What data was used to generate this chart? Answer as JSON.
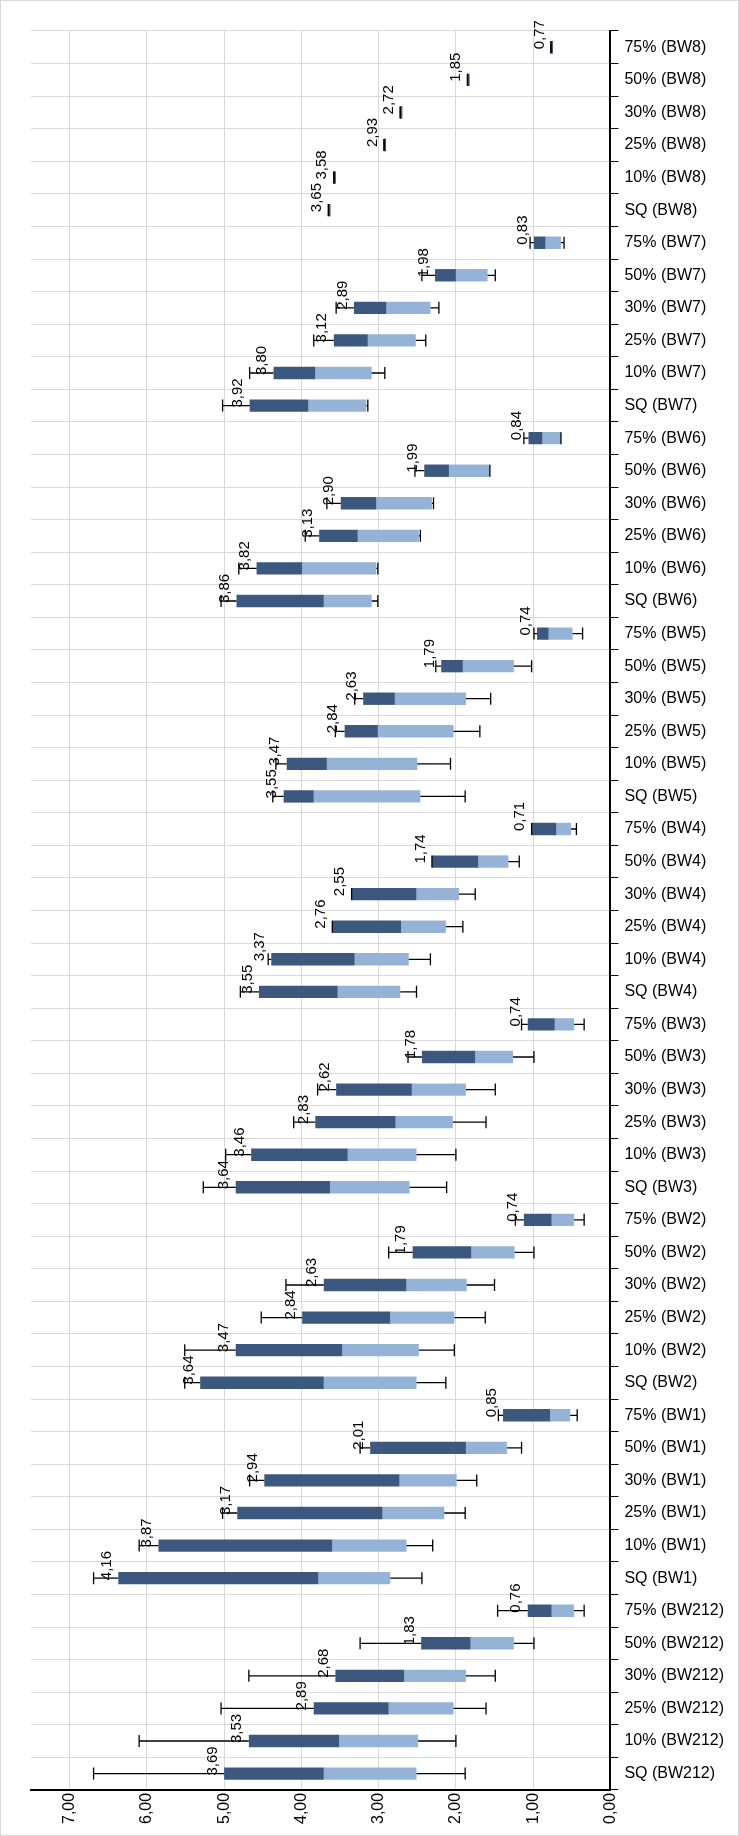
{
  "chart_data": {
    "type": "box",
    "orientation": "horizontal",
    "color": "#95b3d7",
    "grid": true,
    "legend": false,
    "categories": [
      "75% (BW8)",
      "50% (BW8)",
      "30% (BW8)",
      "25% (BW8)",
      "10% (BW8)",
      "SQ (BW8)",
      "75% (BW7)",
      "50% (BW7)",
      "30% (BW7)",
      "25% (BW7)",
      "10% (BW7)",
      "SQ (BW7)",
      "75% (BW6)",
      "50% (BW6)",
      "30% (BW6)",
      "25% (BW6)",
      "10% (BW6)",
      "SQ (BW6)",
      "75% (BW5)",
      "50% (BW5)",
      "30% (BW5)",
      "25% (BW5)",
      "10% (BW5)",
      "SQ (BW5)",
      "75% (BW4)",
      "50% (BW4)",
      "30% (BW4)",
      "25% (BW4)",
      "10% (BW4)",
      "SQ (BW4)",
      "75% (BW3)",
      "50% (BW3)",
      "30% (BW3)",
      "25% (BW3)",
      "10% (BW3)",
      "SQ (BW3)",
      "75% (BW2)",
      "50% (BW2)",
      "30% (BW2)",
      "25% (BW2)",
      "10% (BW2)",
      "SQ (BW2)",
      "75% (BW1)",
      "50% (BW1)",
      "30% (BW1)",
      "25% (BW1)",
      "10% (BW1)",
      "SQ (BW1)",
      "75% (BW212)",
      "50% (BW212)",
      "30% (BW212)",
      "25% (BW212)",
      "10% (BW212)",
      "SQ (BW212)"
    ],
    "boxes": [
      {
        "low": 0.77,
        "q1": 0.77,
        "median": 0.77,
        "q3": 0.77,
        "high": 0.77
      },
      {
        "low": 1.85,
        "q1": 1.85,
        "median": 1.85,
        "q3": 1.85,
        "high": 1.85
      },
      {
        "low": 2.72,
        "q1": 2.72,
        "median": 2.72,
        "q3": 2.72,
        "high": 2.72
      },
      {
        "low": 2.93,
        "q1": 2.93,
        "median": 2.93,
        "q3": 2.93,
        "high": 2.93
      },
      {
        "low": 3.58,
        "q1": 3.58,
        "median": 3.58,
        "q3": 3.58,
        "high": 3.58
      },
      {
        "low": 3.65,
        "q1": 3.65,
        "median": 3.65,
        "q3": 3.65,
        "high": 3.65
      },
      {
        "low": 0.6,
        "q1": 0.64,
        "median": 0.84,
        "q3": 0.99,
        "high": 1.04
      },
      {
        "low": 1.49,
        "q1": 1.59,
        "median": 2.0,
        "q3": 2.27,
        "high": 2.44
      },
      {
        "low": 2.22,
        "q1": 2.33,
        "median": 2.9,
        "q3": 3.32,
        "high": 3.55
      },
      {
        "low": 2.39,
        "q1": 2.52,
        "median": 3.14,
        "q3": 3.58,
        "high": 3.84
      },
      {
        "low": 2.92,
        "q1": 3.09,
        "median": 3.82,
        "q3": 4.36,
        "high": 4.67
      },
      {
        "low": 3.14,
        "q1": 3.16,
        "median": 3.91,
        "q3": 4.67,
        "high": 5.02
      },
      {
        "low": 0.64,
        "q1": 0.64,
        "median": 0.88,
        "q3": 1.06,
        "high": 1.12
      },
      {
        "low": 1.56,
        "q1": 1.56,
        "median": 2.09,
        "q3": 2.41,
        "high": 2.53
      },
      {
        "low": 2.29,
        "q1": 2.31,
        "median": 3.03,
        "q3": 3.49,
        "high": 3.67
      },
      {
        "low": 2.46,
        "q1": 2.48,
        "median": 3.27,
        "q3": 3.77,
        "high": 3.95
      },
      {
        "low": 3.01,
        "q1": 3.03,
        "median": 3.99,
        "q3": 4.58,
        "high": 4.81
      },
      {
        "low": 3.01,
        "q1": 3.09,
        "median": 3.71,
        "q3": 4.84,
        "high": 5.04
      },
      {
        "low": 0.36,
        "q1": 0.49,
        "median": 0.8,
        "q3": 0.95,
        "high": 0.99
      },
      {
        "low": 1.02,
        "q1": 1.25,
        "median": 1.91,
        "q3": 2.19,
        "high": 2.26
      },
      {
        "low": 1.55,
        "q1": 1.87,
        "median": 2.79,
        "q3": 3.2,
        "high": 3.31
      },
      {
        "low": 1.69,
        "q1": 2.03,
        "median": 3.01,
        "q3": 3.44,
        "high": 3.56
      },
      {
        "low": 2.07,
        "q1": 2.5,
        "median": 3.67,
        "q3": 4.19,
        "high": 4.33
      },
      {
        "low": 1.88,
        "q1": 2.46,
        "median": 3.84,
        "q3": 4.23,
        "high": 4.37
      },
      {
        "low": 0.44,
        "q1": 0.51,
        "median": 0.7,
        "q3": 1.02,
        "high": 1.02
      },
      {
        "low": 1.18,
        "q1": 1.32,
        "median": 1.71,
        "q3": 2.31,
        "high": 2.31
      },
      {
        "low": 1.75,
        "q1": 1.96,
        "median": 2.51,
        "q3": 3.35,
        "high": 3.35
      },
      {
        "low": 1.91,
        "q1": 2.13,
        "median": 2.71,
        "q3": 3.6,
        "high": 3.6
      },
      {
        "low": 2.33,
        "q1": 2.61,
        "median": 3.31,
        "q3": 4.39,
        "high": 4.43
      },
      {
        "low": 2.51,
        "q1": 2.72,
        "median": 3.53,
        "q3": 4.55,
        "high": 4.79
      },
      {
        "low": 0.34,
        "q1": 0.47,
        "median": 0.72,
        "q3": 1.07,
        "high": 1.15
      },
      {
        "low": 0.99,
        "q1": 1.26,
        "median": 1.75,
        "q3": 2.44,
        "high": 2.62
      },
      {
        "low": 1.49,
        "q1": 1.87,
        "median": 2.57,
        "q3": 3.55,
        "high": 3.79
      },
      {
        "low": 1.61,
        "q1": 2.04,
        "median": 2.78,
        "q3": 3.82,
        "high": 4.1
      },
      {
        "low": 2.0,
        "q1": 2.51,
        "median": 3.4,
        "q3": 4.65,
        "high": 4.98
      },
      {
        "low": 2.12,
        "q1": 2.6,
        "median": 3.63,
        "q3": 4.85,
        "high": 5.27
      },
      {
        "low": 0.34,
        "q1": 0.47,
        "median": 0.76,
        "q3": 1.12,
        "high": 1.23
      },
      {
        "low": 0.99,
        "q1": 1.24,
        "median": 1.8,
        "q3": 2.56,
        "high": 2.87
      },
      {
        "low": 1.5,
        "q1": 1.86,
        "median": 2.64,
        "q3": 3.71,
        "high": 4.2
      },
      {
        "low": 1.62,
        "q1": 2.02,
        "median": 2.85,
        "q3": 3.99,
        "high": 4.52
      },
      {
        "low": 2.02,
        "q1": 2.48,
        "median": 3.47,
        "q3": 4.85,
        "high": 5.51
      },
      {
        "low": 2.13,
        "q1": 2.51,
        "median": 3.71,
        "q3": 5.31,
        "high": 5.51
      },
      {
        "low": 0.43,
        "q1": 0.52,
        "median": 0.78,
        "q3": 1.39,
        "high": 1.45
      },
      {
        "low": 1.15,
        "q1": 1.34,
        "median": 1.87,
        "q3": 3.11,
        "high": 3.24
      },
      {
        "low": 1.73,
        "q1": 1.99,
        "median": 2.73,
        "q3": 4.48,
        "high": 4.67
      },
      {
        "low": 1.88,
        "q1": 2.15,
        "median": 2.95,
        "q3": 4.83,
        "high": 5.02
      },
      {
        "low": 2.3,
        "q1": 2.64,
        "median": 3.6,
        "q3": 5.85,
        "high": 6.1
      },
      {
        "low": 2.44,
        "q1": 2.85,
        "median": 3.78,
        "q3": 6.37,
        "high": 6.69
      },
      {
        "low": 0.34,
        "q1": 0.47,
        "median": 0.76,
        "q3": 1.07,
        "high": 1.46
      },
      {
        "low": 0.99,
        "q1": 1.25,
        "median": 1.81,
        "q3": 2.45,
        "high": 3.24
      },
      {
        "low": 1.49,
        "q1": 1.87,
        "median": 2.67,
        "q3": 3.56,
        "high": 4.68
      },
      {
        "low": 1.61,
        "q1": 2.03,
        "median": 2.87,
        "q3": 3.84,
        "high": 5.04
      },
      {
        "low": 2.0,
        "q1": 2.49,
        "median": 3.51,
        "q3": 4.68,
        "high": 6.1
      },
      {
        "low": 1.88,
        "q1": 2.51,
        "median": 3.71,
        "q3": 5.0,
        "high": 6.69
      }
    ],
    "xlim": [
      7.5,
      0
    ],
    "xticks": [
      {
        "value": 7,
        "label": "7,00"
      },
      {
        "value": 6,
        "label": "6,00"
      },
      {
        "value": 5,
        "label": "5,00"
      },
      {
        "value": 4,
        "label": "4,00"
      },
      {
        "value": 3,
        "label": "3,00"
      },
      {
        "value": 2,
        "label": "2,00"
      },
      {
        "value": 1,
        "label": "1,00"
      },
      {
        "value": 0,
        "label": "0,00"
      }
    ],
    "annotations": [
      "0,77",
      "1,85",
      "2,72",
      "2,93",
      "3,58",
      "3,65",
      "0,83",
      "1,98",
      "2,89",
      "3,12",
      "3,80",
      "3,92",
      "0,84",
      "1,99",
      "2,90",
      "3,13",
      "3,82",
      "3,86",
      "0,74",
      "1,79",
      "2,63",
      "2,84",
      "3,47",
      "3,55",
      "0,71",
      "1,74",
      "2,55",
      "2,76",
      "3,37",
      "3,55",
      "0,74",
      "1,78",
      "2,62",
      "2,83",
      "3,46",
      "3,64",
      "0,74",
      "1,79",
      "2,63",
      "2,84",
      "3,47",
      "3,64",
      "0,85",
      "2,01",
      "2,94",
      "3,17",
      "3,87",
      "4,16",
      "0,76",
      "1,83",
      "2,68",
      "2,89",
      "3,53",
      "3,69"
    ]
  }
}
